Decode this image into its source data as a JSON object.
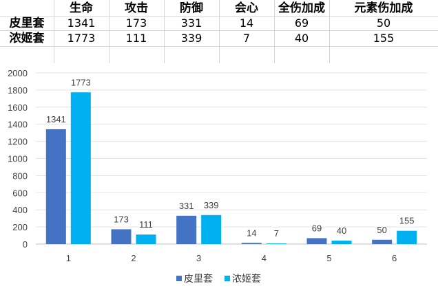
{
  "table": {
    "headers": [
      "生命",
      "攻击",
      "防御",
      "会心",
      "全伤加成",
      "元素伤加成"
    ],
    "rows": [
      {
        "label": "皮里套",
        "values": [
          "1341",
          "173",
          "331",
          "14",
          "69",
          "50"
        ]
      },
      {
        "label": "浓姬套",
        "values": [
          "1773",
          "111",
          "339",
          "7",
          "40",
          "155"
        ]
      }
    ]
  },
  "chart_data": {
    "type": "bar",
    "categories": [
      "1",
      "2",
      "3",
      "4",
      "5",
      "6"
    ],
    "series": [
      {
        "name": "皮里套",
        "values": [
          1341,
          173,
          331,
          14,
          69,
          50
        ],
        "color": "#4472c4"
      },
      {
        "name": "浓姬套",
        "values": [
          1773,
          111,
          339,
          7,
          40,
          155
        ],
        "color": "#00b0f0"
      }
    ],
    "yticks": [
      "0",
      "200",
      "400",
      "600",
      "800",
      "1000",
      "1200",
      "1400",
      "1600",
      "1800",
      "2000"
    ],
    "ylim": [
      0,
      2000
    ],
    "grid": true,
    "legend": "bottom",
    "data_labels": true
  }
}
